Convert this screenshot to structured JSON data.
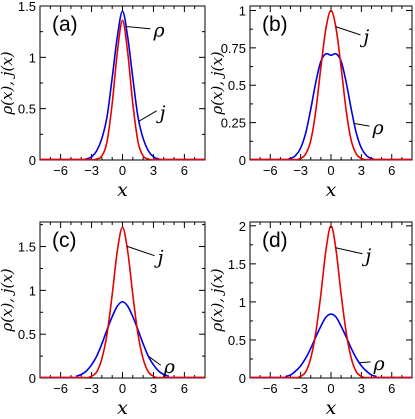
{
  "chart_data": [
    {
      "type": "line",
      "panel_label": "(a)",
      "xlabel": "x",
      "ylabel": "ρ(x), j(x)",
      "xlim": [
        -8,
        8
      ],
      "ylim": [
        0,
        1.5
      ],
      "xticks": [
        -6,
        -3,
        0,
        3,
        6
      ],
      "yticks": [
        0,
        0.5,
        1,
        1.5
      ],
      "ytick_labels": [
        "0",
        "0.5",
        "1",
        "1.5"
      ],
      "series": [
        {
          "name": "ρ",
          "color": "#0000e6",
          "x": [
            -4,
            -3.5,
            -3,
            -2.5,
            -2,
            -1.5,
            -1,
            -0.5,
            0,
            0.5,
            1,
            1.5,
            2,
            2.5,
            3,
            3.5,
            4
          ],
          "y": [
            0,
            0.01,
            0.03,
            0.09,
            0.21,
            0.42,
            0.8,
            1.2,
            1.45,
            1.2,
            0.8,
            0.42,
            0.21,
            0.09,
            0.03,
            0.01,
            0
          ]
        },
        {
          "name": "j",
          "color": "#e60000",
          "x": [
            -3,
            -2.5,
            -2,
            -1.5,
            -1,
            -0.5,
            0,
            0.5,
            1,
            1.5,
            2,
            2.5,
            3
          ],
          "y": [
            0,
            0.01,
            0.04,
            0.18,
            0.55,
            1.05,
            1.36,
            1.05,
            0.55,
            0.18,
            0.04,
            0.01,
            0
          ]
        }
      ],
      "annotations": [
        {
          "text": "ρ",
          "series": "ρ",
          "at_x": 0.3,
          "text_x": 3.0,
          "text_y": 1.24
        },
        {
          "text": "j",
          "series": "ρ",
          "at_x": 1.6,
          "text_x": 3.6,
          "text_y": 0.44
        }
      ]
    },
    {
      "type": "line",
      "panel_label": "(b)",
      "xlabel": "x",
      "ylabel": "ρ(x), j(x)",
      "xlim": [
        -8,
        8
      ],
      "ylim": [
        0,
        1.03
      ],
      "xticks": [
        -6,
        -3,
        0,
        3,
        6
      ],
      "yticks": [
        0,
        0.25,
        0.5,
        0.75,
        1
      ],
      "ytick_labels": [
        "0",
        "0.25",
        "0.5",
        "0.75",
        "1"
      ],
      "series": [
        {
          "name": "ρ",
          "color": "#0000e6",
          "x": [
            -4.5,
            -4,
            -3.5,
            -3,
            -2.5,
            -2,
            -1.5,
            -1,
            -0.5,
            0,
            0.5,
            1,
            1.5,
            2,
            2.5,
            3,
            3.5,
            4,
            4.5
          ],
          "y": [
            0,
            0.01,
            0.03,
            0.08,
            0.18,
            0.34,
            0.52,
            0.66,
            0.71,
            0.7,
            0.71,
            0.66,
            0.52,
            0.34,
            0.18,
            0.08,
            0.03,
            0.01,
            0
          ]
        },
        {
          "name": "j",
          "color": "#e60000",
          "x": [
            -3.5,
            -3,
            -2.5,
            -2,
            -1.5,
            -1,
            -0.5,
            0,
            0.5,
            1,
            1.5,
            2,
            2.5,
            3,
            3.5
          ],
          "y": [
            0,
            0.01,
            0.04,
            0.13,
            0.33,
            0.62,
            0.88,
            1.0,
            0.88,
            0.62,
            0.33,
            0.13,
            0.04,
            0.01,
            0
          ]
        }
      ],
      "annotations": [
        {
          "text": "j",
          "series": "j",
          "at_x": 0.45,
          "text_x": 3.2,
          "text_y": 0.81
        },
        {
          "text": "ρ",
          "series": "ρ",
          "at_x": 2.3,
          "text_x": 4.1,
          "text_y": 0.2
        }
      ]
    },
    {
      "type": "line",
      "panel_label": "(c)",
      "xlabel": "x",
      "ylabel": "ρ(x), j(x)",
      "xlim": [
        -8,
        8
      ],
      "ylim": [
        0,
        1.78
      ],
      "xticks": [
        -6,
        -3,
        0,
        3,
        6
      ],
      "yticks": [
        0,
        0.5,
        1,
        1.5
      ],
      "ytick_labels": [
        "0",
        "0.5",
        "1",
        "1.5"
      ],
      "series": [
        {
          "name": "ρ",
          "color": "#0000e6",
          "x": [
            -4.5,
            -4,
            -3.5,
            -3,
            -2.5,
            -2,
            -1.5,
            -1,
            -0.5,
            0,
            0.5,
            1,
            1.5,
            2,
            2.5,
            3,
            3.5,
            4,
            4.5
          ],
          "y": [
            0.02,
            0.04,
            0.08,
            0.15,
            0.25,
            0.39,
            0.55,
            0.7,
            0.82,
            0.87,
            0.82,
            0.7,
            0.55,
            0.39,
            0.25,
            0.15,
            0.08,
            0.04,
            0.02
          ]
        },
        {
          "name": "j",
          "color": "#e60000",
          "x": [
            -3.5,
            -3,
            -2.5,
            -2,
            -1.5,
            -1,
            -0.5,
            0,
            0.5,
            1,
            1.5,
            2,
            2.5,
            3,
            3.5
          ],
          "y": [
            0,
            0.02,
            0.07,
            0.22,
            0.5,
            0.95,
            1.45,
            1.72,
            1.45,
            0.95,
            0.5,
            0.22,
            0.07,
            0.02,
            0
          ]
        }
      ],
      "annotations": [
        {
          "text": "j",
          "series": "j",
          "at_x": 0.4,
          "text_x": 3.4,
          "text_y": 1.35
        },
        {
          "text": "ρ",
          "series": "ρ",
          "at_x": 2.5,
          "text_x": 4.0,
          "text_y": 0.1
        }
      ]
    },
    {
      "type": "line",
      "panel_label": "(d)",
      "xlabel": "x",
      "ylabel": "ρ(x), j(x)",
      "xlim": [
        -8,
        8
      ],
      "ylim": [
        0,
        2.05
      ],
      "xticks": [
        -6,
        -3,
        0,
        3,
        6
      ],
      "yticks": [
        0,
        0.5,
        1,
        1.5,
        2
      ],
      "ytick_labels": [
        "0",
        "0.5",
        "1",
        "1.5",
        "2"
      ],
      "series": [
        {
          "name": "ρ",
          "color": "#0000e6",
          "x": [
            -4.5,
            -4,
            -3.5,
            -3,
            -2.5,
            -2,
            -1.5,
            -1,
            -0.5,
            0,
            0.5,
            1,
            1.5,
            2,
            2.5,
            3,
            3.5,
            4,
            4.5
          ],
          "y": [
            0.02,
            0.04,
            0.09,
            0.16,
            0.26,
            0.39,
            0.54,
            0.68,
            0.8,
            0.84,
            0.8,
            0.68,
            0.54,
            0.39,
            0.26,
            0.16,
            0.09,
            0.04,
            0.02
          ]
        },
        {
          "name": "j",
          "color": "#e60000",
          "x": [
            -3.5,
            -3,
            -2.5,
            -2,
            -1.5,
            -1,
            -0.5,
            0,
            0.5,
            1,
            1.5,
            2,
            2.5,
            3,
            3.5
          ],
          "y": [
            0,
            0.02,
            0.08,
            0.26,
            0.6,
            1.1,
            1.68,
            2.0,
            1.68,
            1.1,
            0.6,
            0.26,
            0.08,
            0.02,
            0
          ]
        }
      ],
      "annotations": [
        {
          "text": "j",
          "series": "j",
          "at_x": 0.45,
          "text_x": 3.4,
          "text_y": 1.58
        },
        {
          "text": "ρ",
          "series": "ρ",
          "at_x": 2.8,
          "text_x": 4.2,
          "text_y": 0.16
        }
      ]
    }
  ]
}
